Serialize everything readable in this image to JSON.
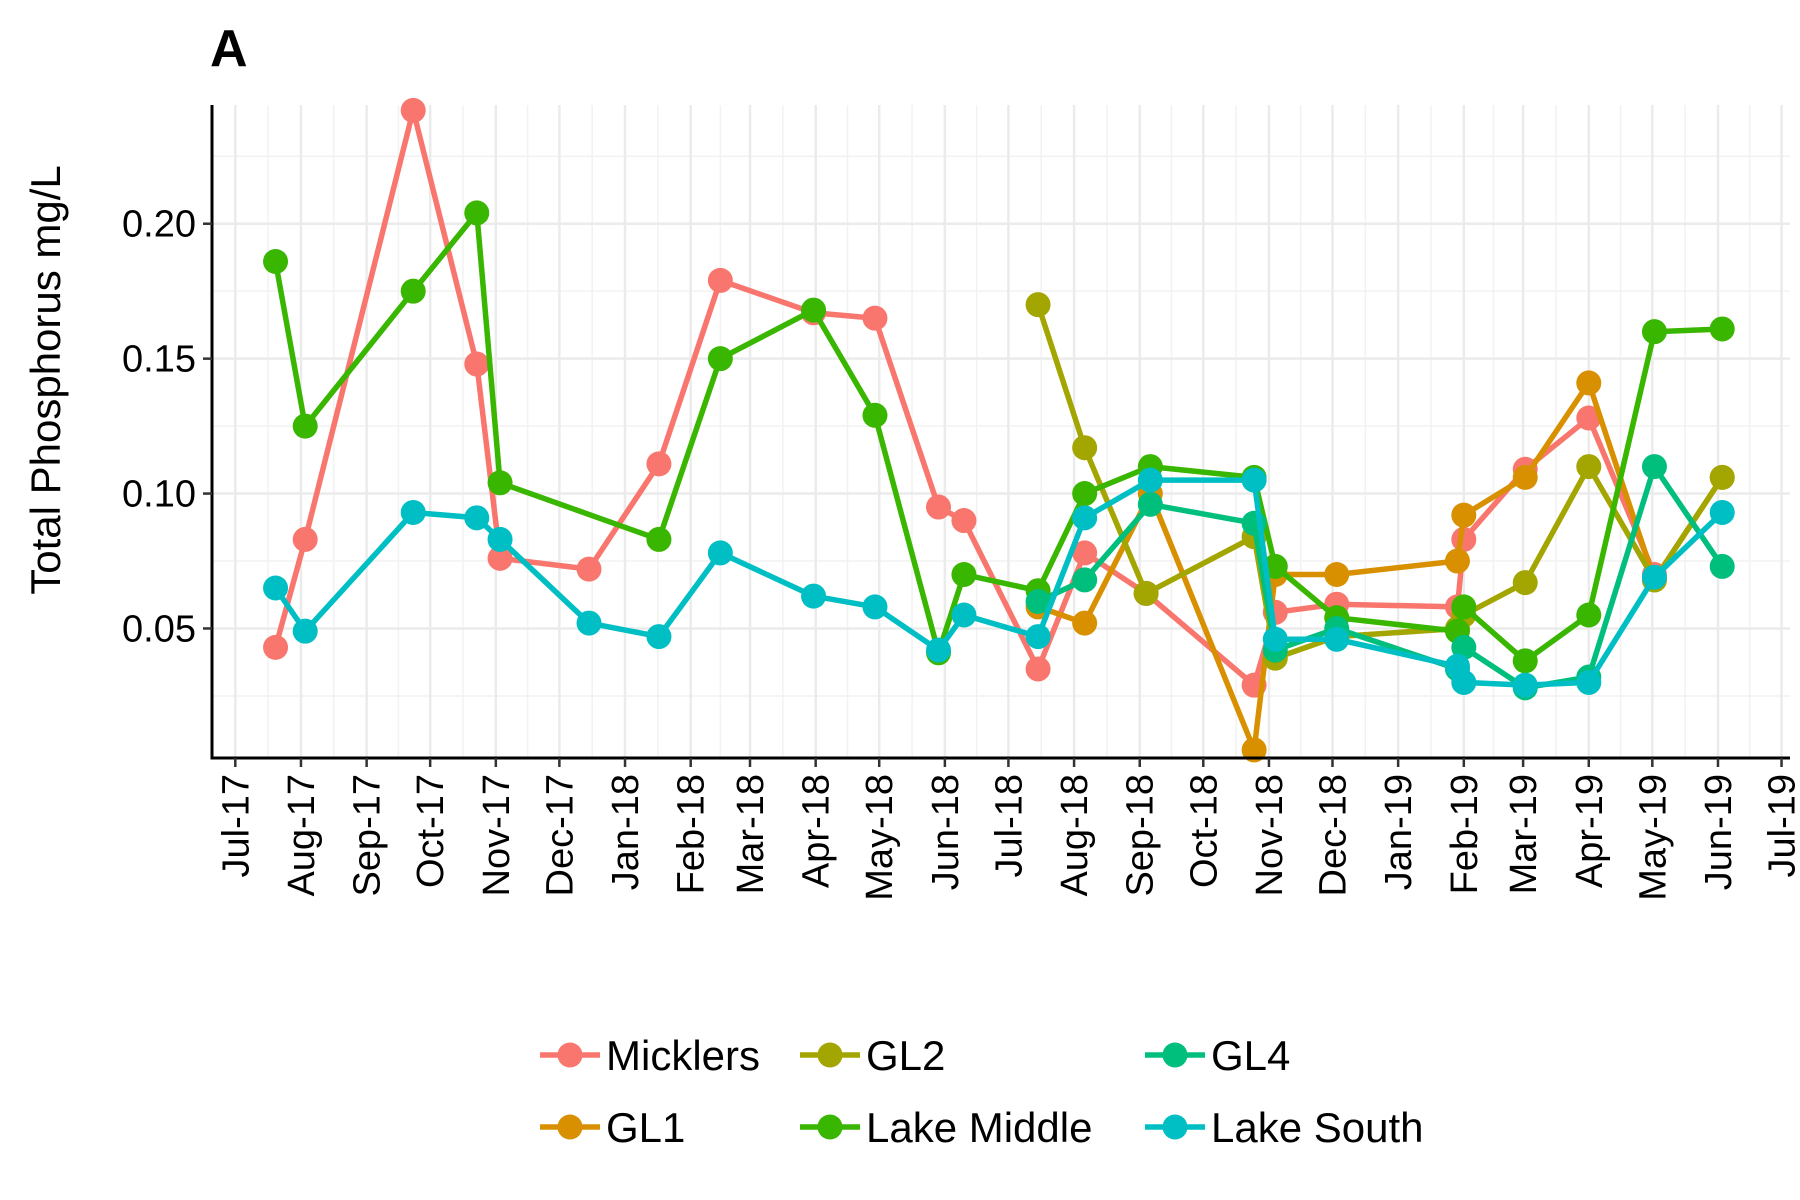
{
  "panel_label": "A",
  "chart_data": {
    "type": "line",
    "title": "",
    "xlabel": "",
    "ylabel": "Total Phosphorus mg/L",
    "x_type": "date",
    "xlim": [
      "2017-06-20",
      "2019-07-05"
    ],
    "ylim": [
      0.002,
      0.244
    ],
    "y_ticks": [
      0.05,
      0.1,
      0.15,
      0.2
    ],
    "y_tick_labels": [
      "0.05",
      "0.10",
      "0.15",
      "0.20"
    ],
    "x_ticks": [
      "2017-07-01",
      "2017-08-01",
      "2017-09-01",
      "2017-10-01",
      "2017-11-01",
      "2017-12-01",
      "2018-01-01",
      "2018-02-01",
      "2018-03-01",
      "2018-04-01",
      "2018-05-01",
      "2018-06-01",
      "2018-07-01",
      "2018-08-01",
      "2018-09-01",
      "2018-10-01",
      "2018-11-01",
      "2018-12-01",
      "2019-01-01",
      "2019-02-01",
      "2019-03-01",
      "2019-04-01",
      "2019-05-01",
      "2019-06-01",
      "2019-07-01"
    ],
    "x_tick_labels": [
      "Jul-17",
      "Aug-17",
      "Sep-17",
      "Oct-17",
      "Nov-17",
      "Dec-17",
      "Jan-18",
      "Feb-18",
      "Mar-18",
      "Apr-18",
      "May-18",
      "Jun-18",
      "Jul-18",
      "Aug-18",
      "Sep-18",
      "Oct-18",
      "Nov-18",
      "Dec-18",
      "Jan-19",
      "Feb-19",
      "Mar-19",
      "Apr-19",
      "May-19",
      "Jun-19",
      "Jul-19"
    ],
    "grid": true,
    "legend_position": "bottom",
    "series": [
      {
        "name": "Micklers",
        "color": "#F8766D",
        "points": [
          {
            "x": "2017-07-20",
            "y": 0.043
          },
          {
            "x": "2017-08-03",
            "y": 0.083
          },
          {
            "x": "2017-09-23",
            "y": 0.242
          },
          {
            "x": "2017-10-23",
            "y": 0.148
          },
          {
            "x": "2017-11-03",
            "y": 0.076
          },
          {
            "x": "2017-12-15",
            "y": 0.072
          },
          {
            "x": "2018-01-17",
            "y": 0.111
          },
          {
            "x": "2018-02-15",
            "y": 0.179
          },
          {
            "x": "2018-03-31",
            "y": 0.167
          },
          {
            "x": "2018-04-29",
            "y": 0.165
          },
          {
            "x": "2018-05-29",
            "y": 0.095
          },
          {
            "x": "2018-06-10",
            "y": 0.09
          },
          {
            "x": "2018-07-15",
            "y": 0.035
          },
          {
            "x": "2018-08-06",
            "y": 0.078
          },
          {
            "x": "2018-09-04",
            "y": 0.063
          },
          {
            "x": "2018-10-25",
            "y": 0.029
          },
          {
            "x": "2018-11-04",
            "y": 0.056
          },
          {
            "x": "2018-12-03",
            "y": 0.059
          },
          {
            "x": "2019-01-29",
            "y": 0.058
          },
          {
            "x": "2019-02-01",
            "y": 0.083
          },
          {
            "x": "2019-03-02",
            "y": 0.109
          },
          {
            "x": "2019-04-01",
            "y": 0.128
          },
          {
            "x": "2019-05-02",
            "y": 0.07
          }
        ]
      },
      {
        "name": "GL1",
        "color": "#D89000",
        "points": [
          {
            "x": "2018-07-15",
            "y": 0.058
          },
          {
            "x": "2018-08-06",
            "y": 0.052
          },
          {
            "x": "2018-09-06",
            "y": 0.1
          },
          {
            "x": "2018-10-25",
            "y": 0.005
          },
          {
            "x": "2018-11-04",
            "y": 0.07
          },
          {
            "x": "2018-12-03",
            "y": 0.07
          },
          {
            "x": "2019-01-29",
            "y": 0.075
          },
          {
            "x": "2019-02-01",
            "y": 0.092
          },
          {
            "x": "2019-03-02",
            "y": 0.106
          },
          {
            "x": "2019-04-01",
            "y": 0.141
          },
          {
            "x": "2019-05-02",
            "y": 0.068
          },
          {
            "x": "2019-06-03",
            "y": 0.106
          }
        ]
      },
      {
        "name": "GL2",
        "color": "#A3A500",
        "points": [
          {
            "x": "2018-07-15",
            "y": 0.17
          },
          {
            "x": "2018-08-06",
            "y": 0.117
          },
          {
            "x": "2018-09-04",
            "y": 0.063
          },
          {
            "x": "2018-10-25",
            "y": 0.084
          },
          {
            "x": "2018-11-04",
            "y": 0.039
          },
          {
            "x": "2018-12-03",
            "y": 0.047
          },
          {
            "x": "2019-01-29",
            "y": 0.05
          },
          {
            "x": "2019-02-01",
            "y": 0.055
          },
          {
            "x": "2019-03-02",
            "y": 0.067
          },
          {
            "x": "2019-04-01",
            "y": 0.11
          },
          {
            "x": "2019-05-02",
            "y": 0.068
          },
          {
            "x": "2019-06-03",
            "y": 0.106
          }
        ]
      },
      {
        "name": "Lake Middle",
        "color": "#39B600",
        "points": [
          {
            "x": "2017-07-20",
            "y": 0.186
          },
          {
            "x": "2017-08-03",
            "y": 0.125
          },
          {
            "x": "2017-09-23",
            "y": 0.175
          },
          {
            "x": "2017-10-23",
            "y": 0.204
          },
          {
            "x": "2017-11-03",
            "y": 0.104
          },
          {
            "x": "2018-01-17",
            "y": 0.083
          },
          {
            "x": "2018-02-15",
            "y": 0.15
          },
          {
            "x": "2018-03-31",
            "y": 0.168
          },
          {
            "x": "2018-04-29",
            "y": 0.129
          },
          {
            "x": "2018-05-29",
            "y": 0.041
          },
          {
            "x": "2018-06-10",
            "y": 0.07
          },
          {
            "x": "2018-07-15",
            "y": 0.064
          },
          {
            "x": "2018-08-06",
            "y": 0.1
          },
          {
            "x": "2018-09-06",
            "y": 0.11
          },
          {
            "x": "2018-10-25",
            "y": 0.106
          },
          {
            "x": "2018-11-04",
            "y": 0.073
          },
          {
            "x": "2018-12-03",
            "y": 0.054
          },
          {
            "x": "2019-01-29",
            "y": 0.049
          },
          {
            "x": "2019-02-01",
            "y": 0.058
          },
          {
            "x": "2019-03-02",
            "y": 0.038
          },
          {
            "x": "2019-04-01",
            "y": 0.055
          },
          {
            "x": "2019-05-02",
            "y": 0.16
          },
          {
            "x": "2019-06-03",
            "y": 0.161
          }
        ]
      },
      {
        "name": "GL4",
        "color": "#00BF7D",
        "points": [
          {
            "x": "2018-07-15",
            "y": 0.06
          },
          {
            "x": "2018-08-06",
            "y": 0.068
          },
          {
            "x": "2018-09-06",
            "y": 0.096
          },
          {
            "x": "2018-10-25",
            "y": 0.089
          },
          {
            "x": "2018-11-04",
            "y": 0.042
          },
          {
            "x": "2018-12-03",
            "y": 0.05
          },
          {
            "x": "2019-01-29",
            "y": 0.035
          },
          {
            "x": "2019-02-01",
            "y": 0.043
          },
          {
            "x": "2019-03-02",
            "y": 0.028
          },
          {
            "x": "2019-04-01",
            "y": 0.032
          },
          {
            "x": "2019-05-02",
            "y": 0.11
          },
          {
            "x": "2019-06-03",
            "y": 0.073
          }
        ]
      },
      {
        "name": "Lake South",
        "color": "#00BFC4",
        "points": [
          {
            "x": "2017-07-20",
            "y": 0.065
          },
          {
            "x": "2017-08-03",
            "y": 0.049
          },
          {
            "x": "2017-09-23",
            "y": 0.093
          },
          {
            "x": "2017-10-23",
            "y": 0.091
          },
          {
            "x": "2017-11-03",
            "y": 0.083
          },
          {
            "x": "2017-12-15",
            "y": 0.052
          },
          {
            "x": "2018-01-17",
            "y": 0.047
          },
          {
            "x": "2018-02-15",
            "y": 0.078
          },
          {
            "x": "2018-03-31",
            "y": 0.062
          },
          {
            "x": "2018-04-29",
            "y": 0.058
          },
          {
            "x": "2018-05-29",
            "y": 0.042
          },
          {
            "x": "2018-06-10",
            "y": 0.055
          },
          {
            "x": "2018-07-15",
            "y": 0.047
          },
          {
            "x": "2018-08-06",
            "y": 0.091
          },
          {
            "x": "2018-09-06",
            "y": 0.105
          },
          {
            "x": "2018-10-25",
            "y": 0.105
          },
          {
            "x": "2018-11-04",
            "y": 0.046
          },
          {
            "x": "2018-12-03",
            "y": 0.046
          },
          {
            "x": "2019-01-29",
            "y": 0.036
          },
          {
            "x": "2019-02-01",
            "y": 0.03
          },
          {
            "x": "2019-03-02",
            "y": 0.029
          },
          {
            "x": "2019-04-01",
            "y": 0.03
          },
          {
            "x": "2019-05-02",
            "y": 0.069
          },
          {
            "x": "2019-06-03",
            "y": 0.093
          }
        ]
      }
    ],
    "legend": {
      "rows": [
        [
          "Micklers",
          "GL2",
          "GL4"
        ],
        [
          "GL1",
          "Lake Middle",
          "Lake South"
        ]
      ]
    }
  }
}
